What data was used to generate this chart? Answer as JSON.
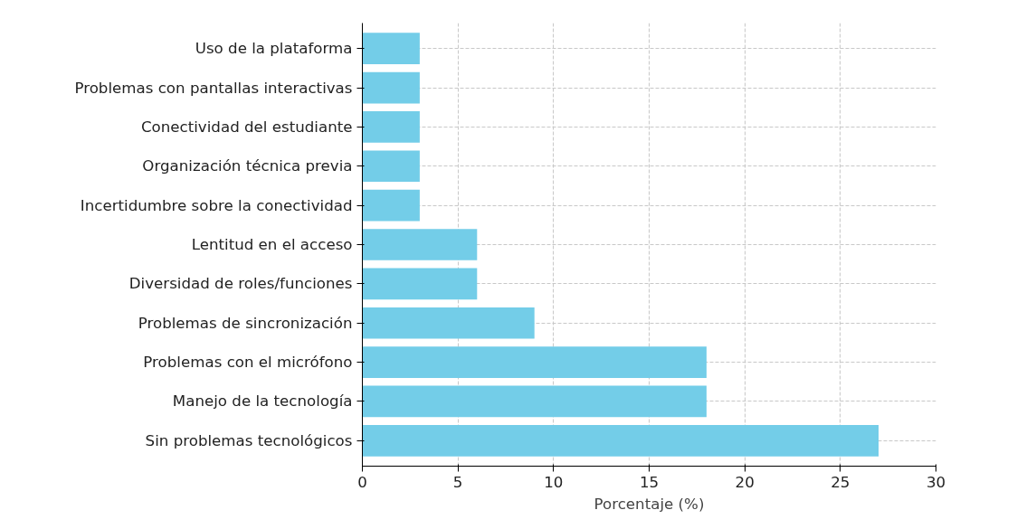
{
  "chart_data": {
    "type": "bar",
    "orientation": "horizontal",
    "xlabel": "Porcentaje (%)",
    "categories": [
      "Uso de la plataforma",
      "Problemas con pantallas interactivas",
      "Conectividad del estudiante",
      "Organización técnica previa",
      "Incertidumbre sobre la conectividad",
      "Lentitud en el acceso",
      "Diversidad de roles/funciones",
      "Problemas de sincronización",
      "Problemas con el micrófono",
      "Manejo de la tecnología",
      "Sin problemas tecnológicos"
    ],
    "values": [
      3,
      3,
      3,
      3,
      3,
      6,
      6,
      9,
      18,
      18,
      27
    ],
    "color": "#73cde8",
    "xlim": [
      0,
      30
    ],
    "xticks": [
      0,
      5,
      10,
      15,
      20,
      25,
      30
    ],
    "grid": true
  }
}
